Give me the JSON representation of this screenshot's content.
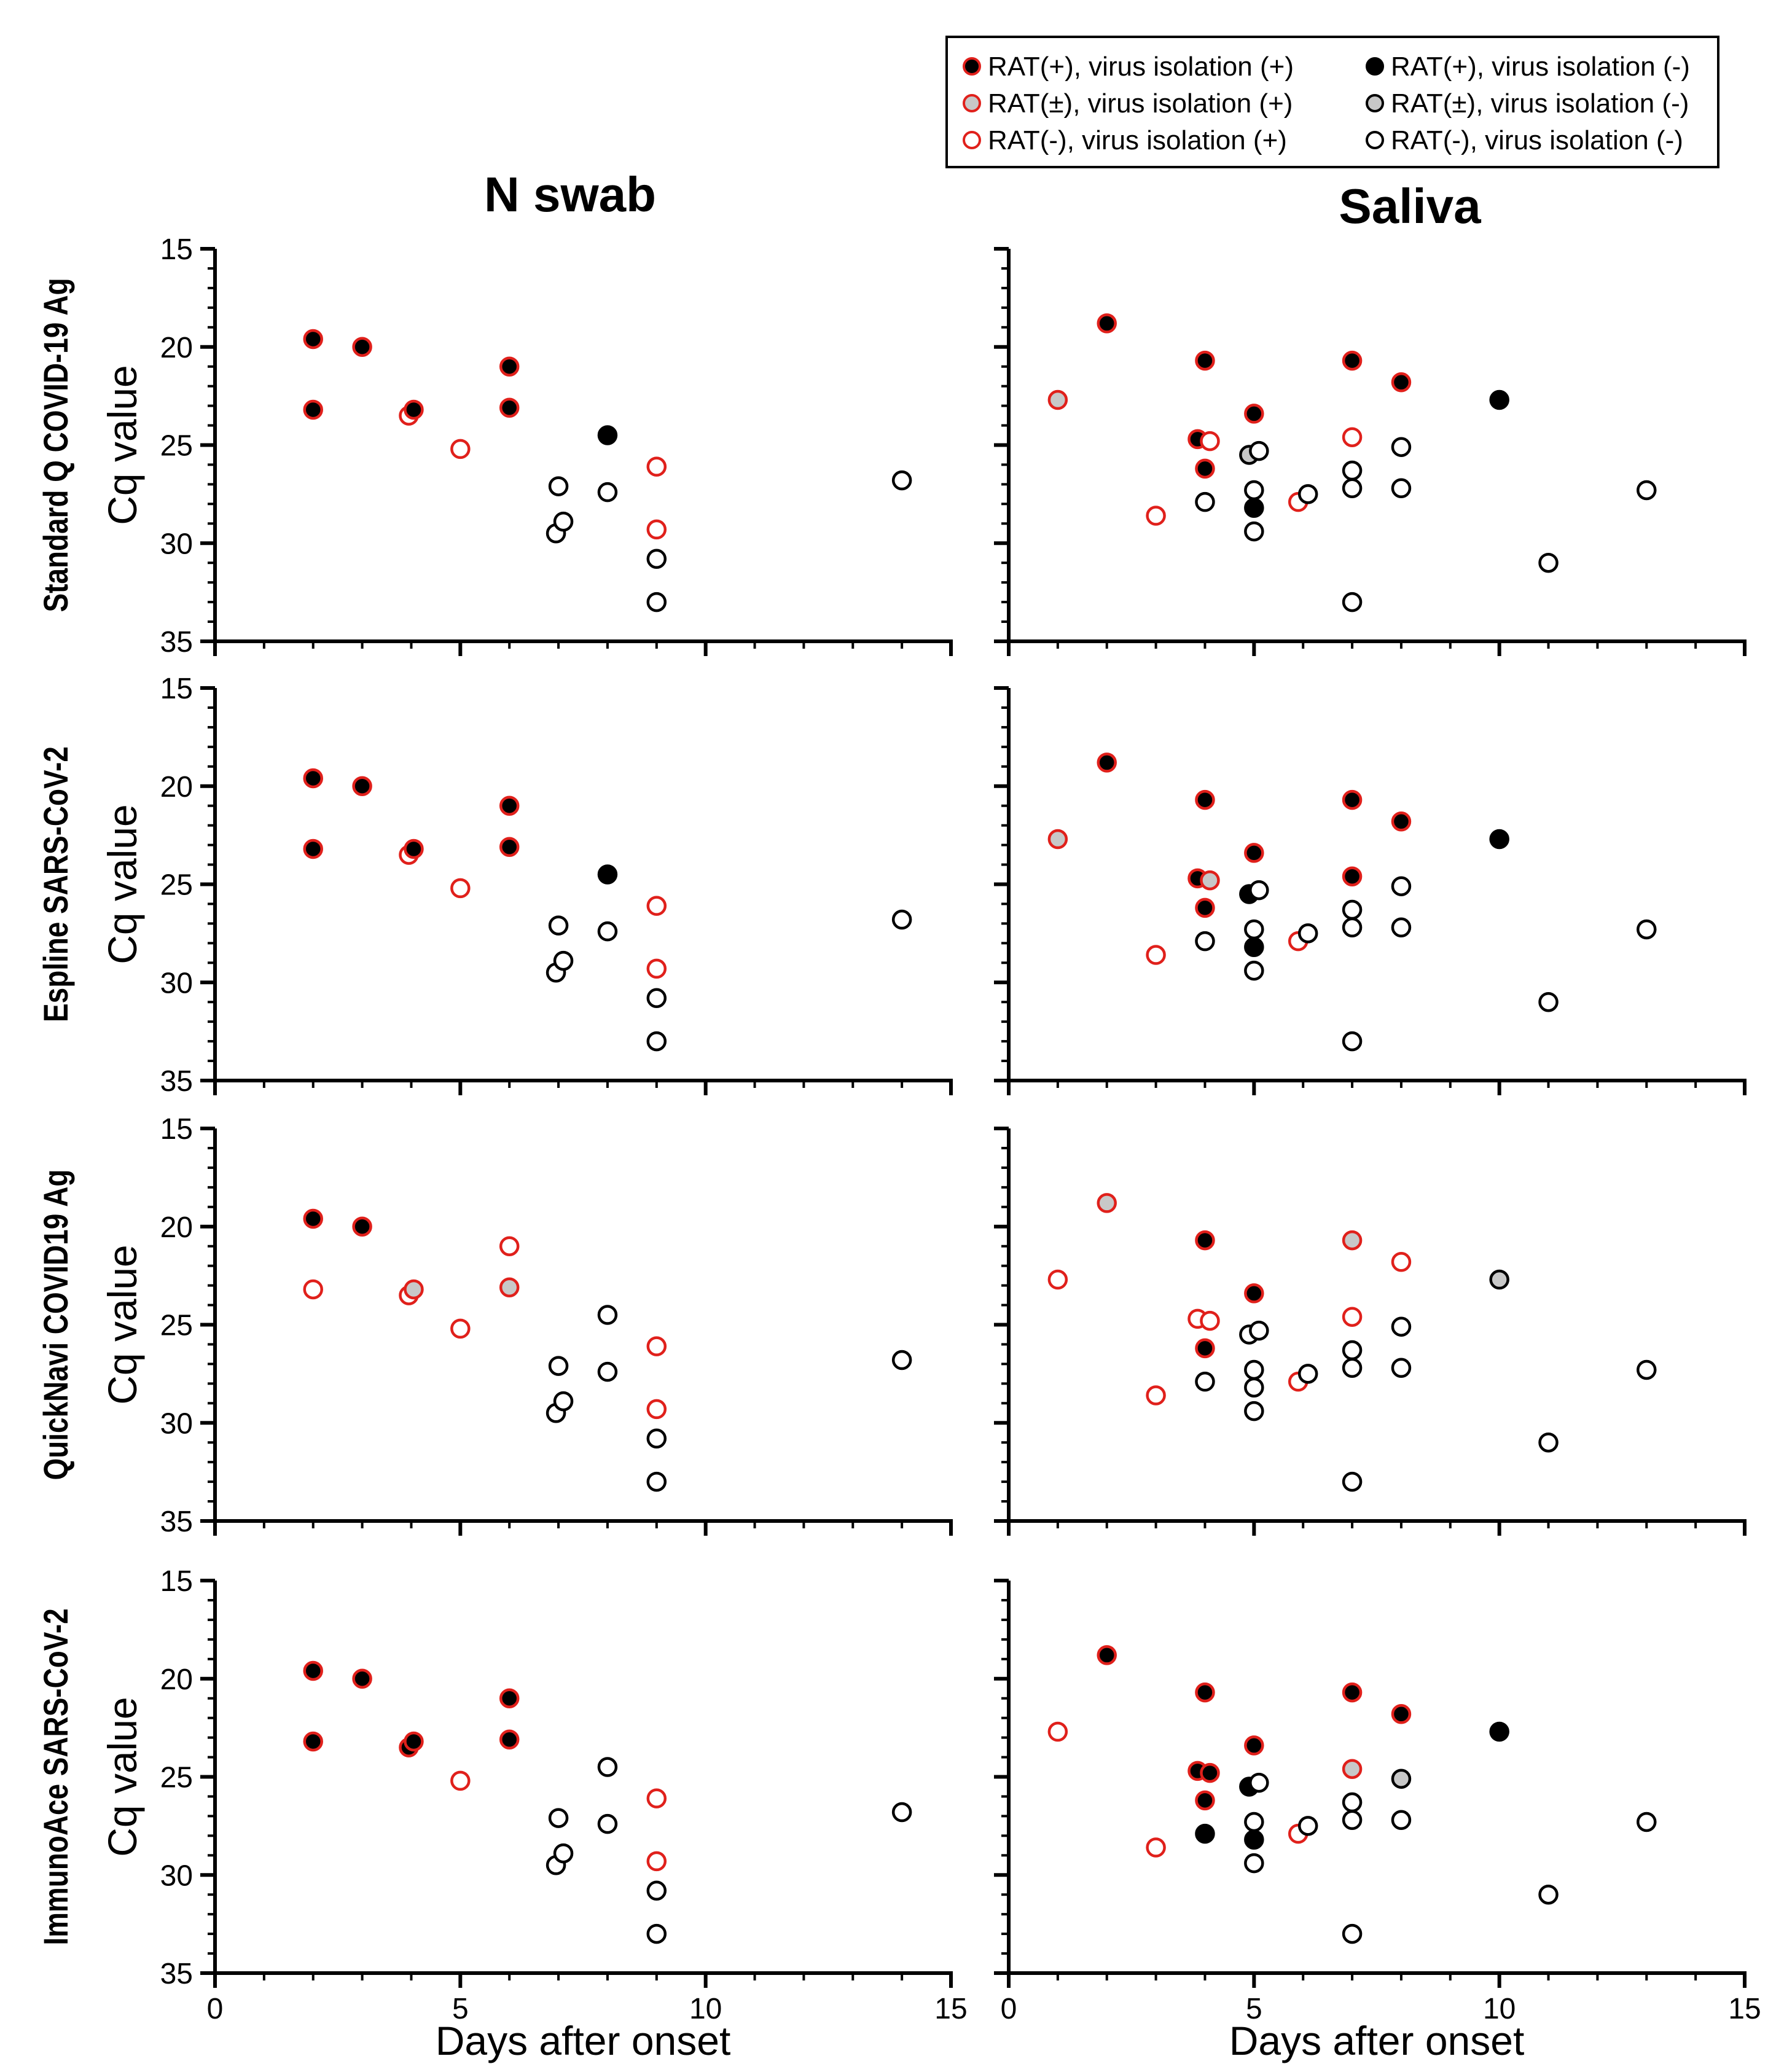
{
  "colors": {
    "red": "#e0201b",
    "black": "#000000",
    "gray": "#c8c8c8",
    "white": "#ffffff"
  },
  "legend": {
    "items": [
      {
        "key": "pp",
        "label": "RAT(+), virus isolation (+)"
      },
      {
        "key": "bp",
        "label": "RAT(±), virus isolation (+)"
      },
      {
        "key": "np",
        "label": "RAT(-), virus isolation (+)"
      },
      {
        "key": "pn",
        "label": "RAT(+), virus isolation (-)"
      },
      {
        "key": "bn",
        "label": "RAT(±), virus isolation (-)"
      },
      {
        "key": "nn",
        "label": "RAT(-), virus isolation (-)"
      }
    ]
  },
  "column_titles": [
    "N swab",
    "Saliva"
  ],
  "row_titles": [
    "Standard Q COVID-19 Ag",
    "Espline SARS-CoV-2",
    "QuickNavi COVID19 Ag",
    "ImmunoAce SARS-CoV-2"
  ],
  "chart_data": {
    "type": "scatter",
    "xlabel": "Days after onset",
    "ylabel": "Cq value",
    "xlim": [
      0,
      15
    ],
    "ylim": [
      15,
      35
    ],
    "y_inverted": true,
    "xticks": [
      0,
      5,
      10,
      15
    ],
    "yticks": [
      15,
      20,
      25,
      30,
      35
    ],
    "panels": [
      {
        "row": 0,
        "col": 0,
        "points": [
          {
            "x": 2,
            "y": 19.6,
            "cat": "pp"
          },
          {
            "x": 2,
            "y": 23.2,
            "cat": "pp"
          },
          {
            "x": 3,
            "y": 20.0,
            "cat": "pp"
          },
          {
            "x": 3.95,
            "y": 23.5,
            "cat": "np"
          },
          {
            "x": 4.05,
            "y": 23.2,
            "cat": "pp"
          },
          {
            "x": 5,
            "y": 25.2,
            "cat": "np"
          },
          {
            "x": 6,
            "y": 21.0,
            "cat": "pp"
          },
          {
            "x": 6,
            "y": 23.1,
            "cat": "pp"
          },
          {
            "x": 6.95,
            "y": 29.5,
            "cat": "nn"
          },
          {
            "x": 7,
            "y": 27.1,
            "cat": "nn"
          },
          {
            "x": 7.1,
            "y": 28.9,
            "cat": "nn"
          },
          {
            "x": 8,
            "y": 24.5,
            "cat": "pn"
          },
          {
            "x": 8,
            "y": 27.4,
            "cat": "nn"
          },
          {
            "x": 9,
            "y": 26.1,
            "cat": "np"
          },
          {
            "x": 9,
            "y": 29.3,
            "cat": "np"
          },
          {
            "x": 9,
            "y": 30.8,
            "cat": "nn"
          },
          {
            "x": 9,
            "y": 33.0,
            "cat": "nn"
          },
          {
            "x": 14,
            "y": 26.8,
            "cat": "nn"
          }
        ]
      },
      {
        "row": 0,
        "col": 1,
        "points": [
          {
            "x": 1,
            "y": 22.7,
            "cat": "bp"
          },
          {
            "x": 2,
            "y": 18.8,
            "cat": "pp"
          },
          {
            "x": 3,
            "y": 28.6,
            "cat": "np"
          },
          {
            "x": 3.85,
            "y": 24.7,
            "cat": "pp"
          },
          {
            "x": 4.1,
            "y": 24.8,
            "cat": "np"
          },
          {
            "x": 4,
            "y": 20.7,
            "cat": "pp"
          },
          {
            "x": 4,
            "y": 26.2,
            "cat": "pp"
          },
          {
            "x": 4,
            "y": 27.9,
            "cat": "nn"
          },
          {
            "x": 5,
            "y": 23.4,
            "cat": "pp"
          },
          {
            "x": 4.9,
            "y": 25.5,
            "cat": "bn"
          },
          {
            "x": 5.1,
            "y": 25.3,
            "cat": "nn"
          },
          {
            "x": 5,
            "y": 27.3,
            "cat": "nn"
          },
          {
            "x": 5,
            "y": 28.2,
            "cat": "pn"
          },
          {
            "x": 5,
            "y": 29.4,
            "cat": "nn"
          },
          {
            "x": 5.9,
            "y": 27.9,
            "cat": "np"
          },
          {
            "x": 6.1,
            "y": 27.5,
            "cat": "nn"
          },
          {
            "x": 7,
            "y": 20.7,
            "cat": "pp"
          },
          {
            "x": 7,
            "y": 24.6,
            "cat": "np"
          },
          {
            "x": 7,
            "y": 26.3,
            "cat": "nn"
          },
          {
            "x": 7,
            "y": 27.2,
            "cat": "nn"
          },
          {
            "x": 7,
            "y": 33.0,
            "cat": "nn"
          },
          {
            "x": 8,
            "y": 21.8,
            "cat": "pp"
          },
          {
            "x": 8,
            "y": 25.1,
            "cat": "nn"
          },
          {
            "x": 8,
            "y": 27.2,
            "cat": "nn"
          },
          {
            "x": 10,
            "y": 22.7,
            "cat": "pn"
          },
          {
            "x": 11,
            "y": 31.0,
            "cat": "nn"
          },
          {
            "x": 13,
            "y": 27.3,
            "cat": "nn"
          }
        ]
      },
      {
        "row": 1,
        "col": 0,
        "points": [
          {
            "x": 2,
            "y": 19.6,
            "cat": "pp"
          },
          {
            "x": 2,
            "y": 23.2,
            "cat": "pp"
          },
          {
            "x": 3,
            "y": 20.0,
            "cat": "pp"
          },
          {
            "x": 3.95,
            "y": 23.5,
            "cat": "np"
          },
          {
            "x": 4.05,
            "y": 23.2,
            "cat": "pp"
          },
          {
            "x": 5,
            "y": 25.2,
            "cat": "np"
          },
          {
            "x": 6,
            "y": 21.0,
            "cat": "pp"
          },
          {
            "x": 6,
            "y": 23.1,
            "cat": "pp"
          },
          {
            "x": 6.95,
            "y": 29.5,
            "cat": "nn"
          },
          {
            "x": 7,
            "y": 27.1,
            "cat": "nn"
          },
          {
            "x": 7.1,
            "y": 28.9,
            "cat": "nn"
          },
          {
            "x": 8,
            "y": 24.5,
            "cat": "pn"
          },
          {
            "x": 8,
            "y": 27.4,
            "cat": "nn"
          },
          {
            "x": 9,
            "y": 26.1,
            "cat": "np"
          },
          {
            "x": 9,
            "y": 29.3,
            "cat": "np"
          },
          {
            "x": 9,
            "y": 30.8,
            "cat": "nn"
          },
          {
            "x": 9,
            "y": 33.0,
            "cat": "nn"
          },
          {
            "x": 14,
            "y": 26.8,
            "cat": "nn"
          }
        ]
      },
      {
        "row": 1,
        "col": 1,
        "points": [
          {
            "x": 1,
            "y": 22.7,
            "cat": "bp"
          },
          {
            "x": 2,
            "y": 18.8,
            "cat": "pp"
          },
          {
            "x": 3,
            "y": 28.6,
            "cat": "np"
          },
          {
            "x": 3.85,
            "y": 24.7,
            "cat": "pp"
          },
          {
            "x": 4.1,
            "y": 24.8,
            "cat": "bp"
          },
          {
            "x": 4,
            "y": 20.7,
            "cat": "pp"
          },
          {
            "x": 4,
            "y": 26.2,
            "cat": "pp"
          },
          {
            "x": 4,
            "y": 27.9,
            "cat": "nn"
          },
          {
            "x": 5,
            "y": 23.4,
            "cat": "pp"
          },
          {
            "x": 4.9,
            "y": 25.5,
            "cat": "pn"
          },
          {
            "x": 5.1,
            "y": 25.3,
            "cat": "nn"
          },
          {
            "x": 5,
            "y": 27.3,
            "cat": "nn"
          },
          {
            "x": 5,
            "y": 28.2,
            "cat": "pn"
          },
          {
            "x": 5,
            "y": 29.4,
            "cat": "nn"
          },
          {
            "x": 5.9,
            "y": 27.9,
            "cat": "np"
          },
          {
            "x": 6.1,
            "y": 27.5,
            "cat": "nn"
          },
          {
            "x": 7,
            "y": 20.7,
            "cat": "pp"
          },
          {
            "x": 7,
            "y": 24.6,
            "cat": "pp"
          },
          {
            "x": 7,
            "y": 26.3,
            "cat": "nn"
          },
          {
            "x": 7,
            "y": 27.2,
            "cat": "nn"
          },
          {
            "x": 7,
            "y": 33.0,
            "cat": "nn"
          },
          {
            "x": 8,
            "y": 21.8,
            "cat": "pp"
          },
          {
            "x": 8,
            "y": 25.1,
            "cat": "nn"
          },
          {
            "x": 8,
            "y": 27.2,
            "cat": "nn"
          },
          {
            "x": 10,
            "y": 22.7,
            "cat": "pn"
          },
          {
            "x": 11,
            "y": 31.0,
            "cat": "nn"
          },
          {
            "x": 13,
            "y": 27.3,
            "cat": "nn"
          }
        ]
      },
      {
        "row": 2,
        "col": 0,
        "points": [
          {
            "x": 2,
            "y": 19.6,
            "cat": "pp"
          },
          {
            "x": 2,
            "y": 23.2,
            "cat": "np"
          },
          {
            "x": 3,
            "y": 20.0,
            "cat": "pp"
          },
          {
            "x": 3.95,
            "y": 23.5,
            "cat": "np"
          },
          {
            "x": 4.05,
            "y": 23.2,
            "cat": "bp"
          },
          {
            "x": 5,
            "y": 25.2,
            "cat": "np"
          },
          {
            "x": 6,
            "y": 21.0,
            "cat": "np"
          },
          {
            "x": 6,
            "y": 23.1,
            "cat": "bp"
          },
          {
            "x": 6.95,
            "y": 29.5,
            "cat": "nn"
          },
          {
            "x": 7,
            "y": 27.1,
            "cat": "nn"
          },
          {
            "x": 7.1,
            "y": 28.9,
            "cat": "nn"
          },
          {
            "x": 8,
            "y": 24.5,
            "cat": "nn"
          },
          {
            "x": 8,
            "y": 27.4,
            "cat": "nn"
          },
          {
            "x": 9,
            "y": 26.1,
            "cat": "np"
          },
          {
            "x": 9,
            "y": 29.3,
            "cat": "np"
          },
          {
            "x": 9,
            "y": 30.8,
            "cat": "nn"
          },
          {
            "x": 9,
            "y": 33.0,
            "cat": "nn"
          },
          {
            "x": 14,
            "y": 26.8,
            "cat": "nn"
          }
        ]
      },
      {
        "row": 2,
        "col": 1,
        "points": [
          {
            "x": 1,
            "y": 22.7,
            "cat": "np"
          },
          {
            "x": 2,
            "y": 18.8,
            "cat": "bp"
          },
          {
            "x": 3,
            "y": 28.6,
            "cat": "np"
          },
          {
            "x": 3.85,
            "y": 24.7,
            "cat": "np"
          },
          {
            "x": 4.1,
            "y": 24.8,
            "cat": "np"
          },
          {
            "x": 4,
            "y": 20.7,
            "cat": "pp"
          },
          {
            "x": 4,
            "y": 26.2,
            "cat": "pp"
          },
          {
            "x": 4,
            "y": 27.9,
            "cat": "nn"
          },
          {
            "x": 5,
            "y": 23.4,
            "cat": "pp"
          },
          {
            "x": 4.9,
            "y": 25.5,
            "cat": "nn"
          },
          {
            "x": 5.1,
            "y": 25.3,
            "cat": "nn"
          },
          {
            "x": 5,
            "y": 27.3,
            "cat": "nn"
          },
          {
            "x": 5,
            "y": 28.2,
            "cat": "nn"
          },
          {
            "x": 5,
            "y": 29.4,
            "cat": "nn"
          },
          {
            "x": 5.9,
            "y": 27.9,
            "cat": "np"
          },
          {
            "x": 6.1,
            "y": 27.5,
            "cat": "nn"
          },
          {
            "x": 7,
            "y": 20.7,
            "cat": "bp"
          },
          {
            "x": 7,
            "y": 24.6,
            "cat": "np"
          },
          {
            "x": 7,
            "y": 26.3,
            "cat": "nn"
          },
          {
            "x": 7,
            "y": 27.2,
            "cat": "nn"
          },
          {
            "x": 7,
            "y": 33.0,
            "cat": "nn"
          },
          {
            "x": 8,
            "y": 21.8,
            "cat": "np"
          },
          {
            "x": 8,
            "y": 25.1,
            "cat": "nn"
          },
          {
            "x": 8,
            "y": 27.2,
            "cat": "nn"
          },
          {
            "x": 10,
            "y": 22.7,
            "cat": "bn"
          },
          {
            "x": 11,
            "y": 31.0,
            "cat": "nn"
          },
          {
            "x": 13,
            "y": 27.3,
            "cat": "nn"
          }
        ]
      },
      {
        "row": 3,
        "col": 0,
        "points": [
          {
            "x": 2,
            "y": 19.6,
            "cat": "pp"
          },
          {
            "x": 2,
            "y": 23.2,
            "cat": "pp"
          },
          {
            "x": 3,
            "y": 20.0,
            "cat": "pp"
          },
          {
            "x": 3.95,
            "y": 23.5,
            "cat": "pp"
          },
          {
            "x": 4.05,
            "y": 23.2,
            "cat": "pp"
          },
          {
            "x": 5,
            "y": 25.2,
            "cat": "np"
          },
          {
            "x": 6,
            "y": 21.0,
            "cat": "pp"
          },
          {
            "x": 6,
            "y": 23.1,
            "cat": "pp"
          },
          {
            "x": 6.95,
            "y": 29.5,
            "cat": "nn"
          },
          {
            "x": 7,
            "y": 27.1,
            "cat": "nn"
          },
          {
            "x": 7.1,
            "y": 28.9,
            "cat": "nn"
          },
          {
            "x": 8,
            "y": 24.5,
            "cat": "nn"
          },
          {
            "x": 8,
            "y": 27.4,
            "cat": "nn"
          },
          {
            "x": 9,
            "y": 26.1,
            "cat": "np"
          },
          {
            "x": 9,
            "y": 29.3,
            "cat": "np"
          },
          {
            "x": 9,
            "y": 30.8,
            "cat": "nn"
          },
          {
            "x": 9,
            "y": 33.0,
            "cat": "nn"
          },
          {
            "x": 14,
            "y": 26.8,
            "cat": "nn"
          }
        ]
      },
      {
        "row": 3,
        "col": 1,
        "points": [
          {
            "x": 1,
            "y": 22.7,
            "cat": "np"
          },
          {
            "x": 2,
            "y": 18.8,
            "cat": "pp"
          },
          {
            "x": 3,
            "y": 28.6,
            "cat": "np"
          },
          {
            "x": 3.85,
            "y": 24.7,
            "cat": "pp"
          },
          {
            "x": 4.1,
            "y": 24.8,
            "cat": "pp"
          },
          {
            "x": 4,
            "y": 20.7,
            "cat": "pp"
          },
          {
            "x": 4,
            "y": 26.2,
            "cat": "pp"
          },
          {
            "x": 4,
            "y": 27.9,
            "cat": "pn"
          },
          {
            "x": 5,
            "y": 23.4,
            "cat": "pp"
          },
          {
            "x": 4.9,
            "y": 25.5,
            "cat": "pn"
          },
          {
            "x": 5.1,
            "y": 25.3,
            "cat": "nn"
          },
          {
            "x": 5,
            "y": 27.3,
            "cat": "nn"
          },
          {
            "x": 5,
            "y": 28.2,
            "cat": "pn"
          },
          {
            "x": 5,
            "y": 29.4,
            "cat": "nn"
          },
          {
            "x": 5.9,
            "y": 27.9,
            "cat": "np"
          },
          {
            "x": 6.1,
            "y": 27.5,
            "cat": "nn"
          },
          {
            "x": 7,
            "y": 20.7,
            "cat": "pp"
          },
          {
            "x": 7,
            "y": 24.6,
            "cat": "bp"
          },
          {
            "x": 7,
            "y": 26.3,
            "cat": "nn"
          },
          {
            "x": 7,
            "y": 27.2,
            "cat": "nn"
          },
          {
            "x": 7,
            "y": 33.0,
            "cat": "nn"
          },
          {
            "x": 8,
            "y": 21.8,
            "cat": "pp"
          },
          {
            "x": 8,
            "y": 25.1,
            "cat": "bn"
          },
          {
            "x": 8,
            "y": 27.2,
            "cat": "nn"
          },
          {
            "x": 10,
            "y": 22.7,
            "cat": "pn"
          },
          {
            "x": 11,
            "y": 31.0,
            "cat": "nn"
          },
          {
            "x": 13,
            "y": 27.3,
            "cat": "nn"
          }
        ]
      }
    ]
  }
}
